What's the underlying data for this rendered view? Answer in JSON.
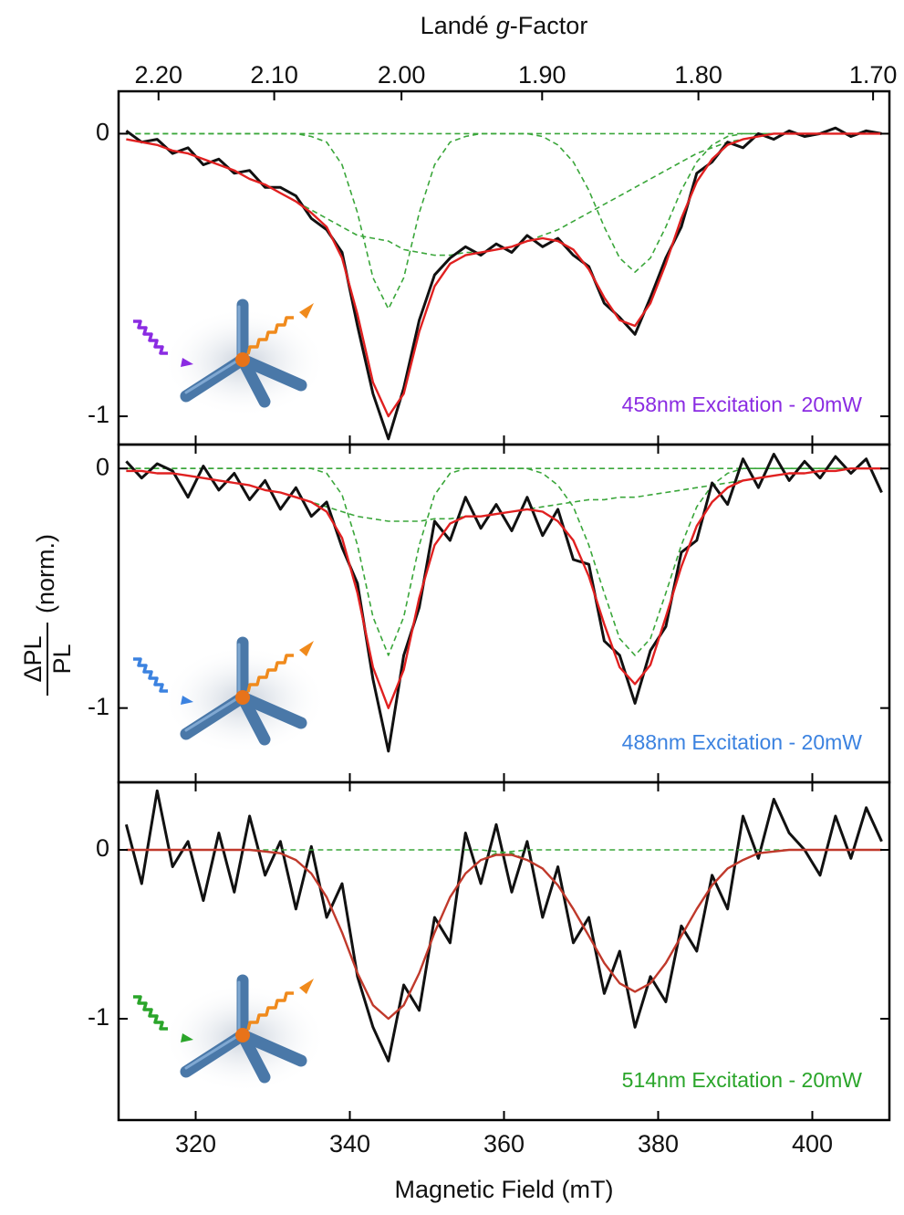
{
  "chart_data": [
    {
      "type": "line",
      "x2label": [
        "Landé",
        "g",
        "-Factor"
      ],
      "x2ticks": [
        {
          "value": 2.2,
          "label": "2.20"
        },
        {
          "value": 2.1,
          "label": "2.10"
        },
        {
          "value": 2.0,
          "label": "2.00"
        },
        {
          "value": 1.9,
          "label": "1.90"
        },
        {
          "value": 1.8,
          "label": "1.80"
        },
        {
          "value": 1.7,
          "label": "1.70"
        }
      ],
      "xlim": [
        310,
        410
      ],
      "ylim": [
        -1.1,
        0.15
      ],
      "yticks": [
        0,
        -1
      ],
      "annotation": "458nm Excitation - 20mW",
      "annotation_color": "#8a2be2",
      "x": [
        311,
        313,
        315,
        317,
        319,
        321,
        323,
        325,
        327,
        329,
        331,
        333,
        335,
        337,
        339,
        341,
        343,
        345,
        347,
        349,
        351,
        353,
        355,
        357,
        359,
        361,
        363,
        365,
        367,
        369,
        371,
        373,
        375,
        377,
        379,
        381,
        383,
        385,
        387,
        389,
        391,
        393,
        395,
        397,
        399,
        401,
        403,
        405,
        407,
        409
      ],
      "series": [
        {
          "color": "#3aa63a",
          "style": "dashed",
          "values": [
            0,
            0,
            0,
            0,
            0,
            0,
            0,
            0,
            0,
            0,
            0,
            0,
            -0.01,
            -0.03,
            -0.11,
            -0.28,
            -0.51,
            -0.62,
            -0.51,
            -0.28,
            -0.11,
            -0.03,
            -0.01,
            0,
            0,
            0,
            0,
            0,
            0,
            0,
            0,
            0,
            0,
            0,
            0,
            0,
            0,
            0,
            0,
            0,
            0,
            0,
            0,
            0,
            0,
            0,
            0,
            0,
            0,
            0
          ]
        },
        {
          "color": "#3aa63a",
          "style": "dashed",
          "values": [
            -0.02,
            -0.03,
            -0.04,
            -0.06,
            -0.07,
            -0.09,
            -0.11,
            -0.13,
            -0.16,
            -0.18,
            -0.21,
            -0.24,
            -0.27,
            -0.3,
            -0.33,
            -0.36,
            -0.37,
            -0.38,
            -0.41,
            -0.42,
            -0.43,
            -0.43,
            -0.42,
            -0.42,
            -0.41,
            -0.4,
            -0.38,
            -0.36,
            -0.34,
            -0.31,
            -0.28,
            -0.25,
            -0.22,
            -0.19,
            -0.16,
            -0.13,
            -0.1,
            -0.07,
            -0.05,
            -0.03,
            -0.02,
            -0.01,
            0,
            0,
            0,
            0,
            0,
            0,
            0,
            0
          ]
        },
        {
          "color": "#3aa63a",
          "style": "dashed",
          "values": [
            0,
            0,
            0,
            0,
            0,
            0,
            0,
            0,
            0,
            0,
            0,
            0,
            0,
            0,
            0,
            0,
            0,
            0,
            0,
            0,
            0,
            0,
            0,
            0,
            0,
            0,
            0,
            -0.01,
            -0.04,
            -0.1,
            -0.2,
            -0.33,
            -0.44,
            -0.49,
            -0.44,
            -0.33,
            -0.2,
            -0.1,
            -0.04,
            -0.01,
            0,
            0,
            0,
            0,
            0,
            0,
            0,
            0,
            0,
            0
          ]
        },
        {
          "color": "#111111",
          "style": "data",
          "values": [
            0.01,
            -0.03,
            -0.02,
            -0.07,
            -0.05,
            -0.11,
            -0.09,
            -0.14,
            -0.13,
            -0.19,
            -0.19,
            -0.22,
            -0.3,
            -0.34,
            -0.42,
            -0.68,
            -0.92,
            -1.08,
            -0.9,
            -0.66,
            -0.5,
            -0.44,
            -0.4,
            -0.43,
            -0.39,
            -0.42,
            -0.36,
            -0.4,
            -0.37,
            -0.43,
            -0.47,
            -0.6,
            -0.65,
            -0.71,
            -0.58,
            -0.44,
            -0.33,
            -0.14,
            -0.1,
            -0.03,
            -0.05,
            0,
            -0.02,
            0.01,
            -0.01,
            0,
            0.02,
            -0.01,
            0.01,
            0
          ]
        },
        {
          "color": "#e02020",
          "style": "fit",
          "values": [
            -0.02,
            -0.03,
            -0.04,
            -0.06,
            -0.07,
            -0.09,
            -0.11,
            -0.13,
            -0.16,
            -0.18,
            -0.21,
            -0.24,
            -0.28,
            -0.33,
            -0.44,
            -0.64,
            -0.88,
            -1.0,
            -0.92,
            -0.7,
            -0.54,
            -0.46,
            -0.43,
            -0.42,
            -0.41,
            -0.4,
            -0.38,
            -0.37,
            -0.38,
            -0.41,
            -0.48,
            -0.58,
            -0.66,
            -0.68,
            -0.6,
            -0.46,
            -0.3,
            -0.17,
            -0.09,
            -0.04,
            -0.02,
            -0.01,
            0,
            0,
            0,
            0,
            0,
            0,
            0,
            0
          ]
        }
      ]
    },
    {
      "type": "line",
      "ylabel": {
        "numerator": "ΔPL",
        "denominator": "PL",
        "unit": "(norm.)"
      },
      "xlim": [
        310,
        410
      ],
      "ylim": [
        -1.31,
        0.1
      ],
      "yticks": [
        0,
        -1
      ],
      "annotation": "488nm Excitation - 20mW",
      "annotation_color": "#3b82e0",
      "x": [
        311,
        313,
        315,
        317,
        319,
        321,
        323,
        325,
        327,
        329,
        331,
        333,
        335,
        337,
        339,
        341,
        343,
        345,
        347,
        349,
        351,
        353,
        355,
        357,
        359,
        361,
        363,
        365,
        367,
        369,
        371,
        373,
        375,
        377,
        379,
        381,
        383,
        385,
        387,
        389,
        391,
        393,
        395,
        397,
        399,
        401,
        403,
        405,
        407,
        409
      ],
      "series": [
        {
          "color": "#3aa63a",
          "style": "dashed",
          "values": [
            0,
            0,
            0,
            0,
            0,
            0,
            0,
            0,
            0,
            0,
            0,
            0,
            0,
            -0.02,
            -0.11,
            -0.32,
            -0.62,
            -0.78,
            -0.62,
            -0.32,
            -0.11,
            -0.02,
            0,
            0,
            0,
            0,
            0,
            0,
            0,
            0,
            0,
            0,
            0,
            0,
            0,
            0,
            0,
            0,
            0,
            0,
            0,
            0,
            0,
            0,
            0,
            0,
            0,
            0,
            0,
            0
          ]
        },
        {
          "color": "#3aa63a",
          "style": "dashed",
          "values": [
            -0.01,
            -0.01,
            -0.02,
            -0.02,
            -0.03,
            -0.04,
            -0.05,
            -0.06,
            -0.07,
            -0.09,
            -0.1,
            -0.12,
            -0.14,
            -0.16,
            -0.18,
            -0.2,
            -0.21,
            -0.22,
            -0.22,
            -0.22,
            -0.21,
            -0.21,
            -0.2,
            -0.2,
            -0.19,
            -0.18,
            -0.17,
            -0.16,
            -0.15,
            -0.14,
            -0.13,
            -0.13,
            -0.12,
            -0.12,
            -0.11,
            -0.1,
            -0.09,
            -0.08,
            -0.07,
            -0.06,
            -0.05,
            -0.04,
            -0.03,
            -0.02,
            -0.02,
            -0.01,
            -0.01,
            0,
            0,
            0
          ]
        },
        {
          "color": "#3aa63a",
          "style": "dashed",
          "values": [
            0,
            0,
            0,
            0,
            0,
            0,
            0,
            0,
            0,
            0,
            0,
            0,
            0,
            0,
            0,
            0,
            0,
            0,
            0,
            0,
            0,
            0,
            0,
            0,
            0,
            0,
            0,
            -0.02,
            -0.07,
            -0.16,
            -0.32,
            -0.52,
            -0.71,
            -0.78,
            -0.71,
            -0.52,
            -0.32,
            -0.16,
            -0.07,
            -0.02,
            0,
            0,
            0,
            0,
            0,
            0,
            0,
            0,
            0,
            0
          ]
        },
        {
          "color": "#111111",
          "style": "data",
          "values": [
            0.03,
            -0.04,
            0.02,
            -0.01,
            -0.12,
            0.01,
            -0.09,
            -0.02,
            -0.13,
            -0.05,
            -0.17,
            -0.08,
            -0.2,
            -0.14,
            -0.33,
            -0.48,
            -0.88,
            -1.18,
            -0.78,
            -0.58,
            -0.22,
            -0.3,
            -0.12,
            -0.25,
            -0.15,
            -0.26,
            -0.12,
            -0.28,
            -0.17,
            -0.38,
            -0.4,
            -0.72,
            -0.78,
            -0.98,
            -0.76,
            -0.66,
            -0.35,
            -0.3,
            -0.06,
            -0.15,
            0.04,
            -0.08,
            0.06,
            -0.05,
            0.03,
            -0.04,
            0.05,
            -0.02,
            0.04,
            -0.1
          ]
        },
        {
          "color": "#e02020",
          "style": "fit",
          "values": [
            -0.01,
            -0.01,
            -0.02,
            -0.02,
            -0.03,
            -0.04,
            -0.05,
            -0.06,
            -0.07,
            -0.09,
            -0.1,
            -0.12,
            -0.14,
            -0.18,
            -0.29,
            -0.52,
            -0.83,
            -1.0,
            -0.84,
            -0.54,
            -0.32,
            -0.23,
            -0.2,
            -0.2,
            -0.19,
            -0.18,
            -0.17,
            -0.18,
            -0.22,
            -0.3,
            -0.45,
            -0.65,
            -0.83,
            -0.9,
            -0.82,
            -0.62,
            -0.41,
            -0.24,
            -0.14,
            -0.08,
            -0.05,
            -0.04,
            -0.03,
            -0.02,
            -0.02,
            -0.01,
            -0.01,
            0,
            0,
            0
          ]
        }
      ]
    },
    {
      "type": "line",
      "xlabel": "Magnetic Field (mT)",
      "xlim": [
        310,
        410
      ],
      "xticks": [
        320,
        340,
        360,
        380,
        400
      ],
      "ylim": [
        -1.6,
        0.4
      ],
      "yticks": [
        0,
        -1
      ],
      "annotation": "514nm Excitation - 20mW",
      "annotation_color": "#2aa52a",
      "x": [
        311,
        313,
        315,
        317,
        319,
        321,
        323,
        325,
        327,
        329,
        331,
        333,
        335,
        337,
        339,
        341,
        343,
        345,
        347,
        349,
        351,
        353,
        355,
        357,
        359,
        361,
        363,
        365,
        367,
        369,
        371,
        373,
        375,
        377,
        379,
        381,
        383,
        385,
        387,
        389,
        391,
        393,
        395,
        397,
        399,
        401,
        403,
        405,
        407,
        409
      ],
      "series": [
        {
          "color": "#111111",
          "style": "data",
          "values": [
            0.15,
            -0.2,
            0.35,
            -0.1,
            0.05,
            -0.3,
            0.1,
            -0.25,
            0.2,
            -0.15,
            0.05,
            -0.35,
            0.02,
            -0.4,
            -0.2,
            -0.75,
            -1.05,
            -1.25,
            -0.8,
            -0.95,
            -0.4,
            -0.55,
            0.1,
            -0.2,
            0.15,
            -0.25,
            0.05,
            -0.4,
            -0.1,
            -0.55,
            -0.4,
            -0.85,
            -0.6,
            -1.05,
            -0.75,
            -0.9,
            -0.45,
            -0.6,
            -0.15,
            -0.35,
            0.2,
            -0.05,
            0.3,
            0.1,
            0,
            -0.15,
            0.2,
            -0.05,
            0.25,
            0.05
          ]
        },
        {
          "color": "#3aa63a",
          "style": "dashed",
          "values": [
            0,
            0,
            0,
            0,
            0,
            0,
            0,
            0,
            0,
            -0.01,
            -0.02,
            -0.06,
            -0.14,
            -0.28,
            -0.49,
            -0.73,
            -0.92,
            -1.0,
            -0.92,
            -0.73,
            -0.49,
            -0.28,
            -0.14,
            -0.06,
            -0.02,
            -0.01,
            0,
            0,
            0,
            0,
            0,
            0,
            0,
            0,
            0,
            0,
            0,
            0,
            0,
            0,
            0,
            0,
            0,
            0,
            0,
            0,
            0,
            0,
            0,
            0
          ]
        },
        {
          "color": "#3aa63a",
          "style": "dashed",
          "values": [
            0,
            0,
            0,
            0,
            0,
            0,
            0,
            0,
            0,
            0,
            0,
            0,
            0,
            0,
            0,
            0,
            0,
            0,
            0,
            0,
            0,
            0,
            0,
            0,
            -0.01,
            -0.02,
            -0.06,
            -0.11,
            -0.21,
            -0.35,
            -0.51,
            -0.67,
            -0.79,
            -0.84,
            -0.79,
            -0.67,
            -0.51,
            -0.35,
            -0.21,
            -0.11,
            -0.06,
            -0.02,
            -0.01,
            0,
            0,
            0,
            0,
            0,
            0,
            0
          ]
        },
        {
          "color": "#c0392b",
          "style": "fit",
          "values": [
            0,
            0,
            0,
            0,
            0,
            0,
            0,
            0,
            0,
            -0.01,
            -0.02,
            -0.06,
            -0.14,
            -0.28,
            -0.49,
            -0.73,
            -0.92,
            -1.0,
            -0.92,
            -0.73,
            -0.49,
            -0.28,
            -0.14,
            -0.06,
            -0.03,
            -0.03,
            -0.06,
            -0.11,
            -0.21,
            -0.35,
            -0.51,
            -0.67,
            -0.79,
            -0.84,
            -0.79,
            -0.67,
            -0.51,
            -0.35,
            -0.21,
            -0.11,
            -0.06,
            -0.02,
            -0.01,
            0,
            0,
            0,
            0,
            0,
            0,
            0
          ]
        }
      ]
    }
  ]
}
